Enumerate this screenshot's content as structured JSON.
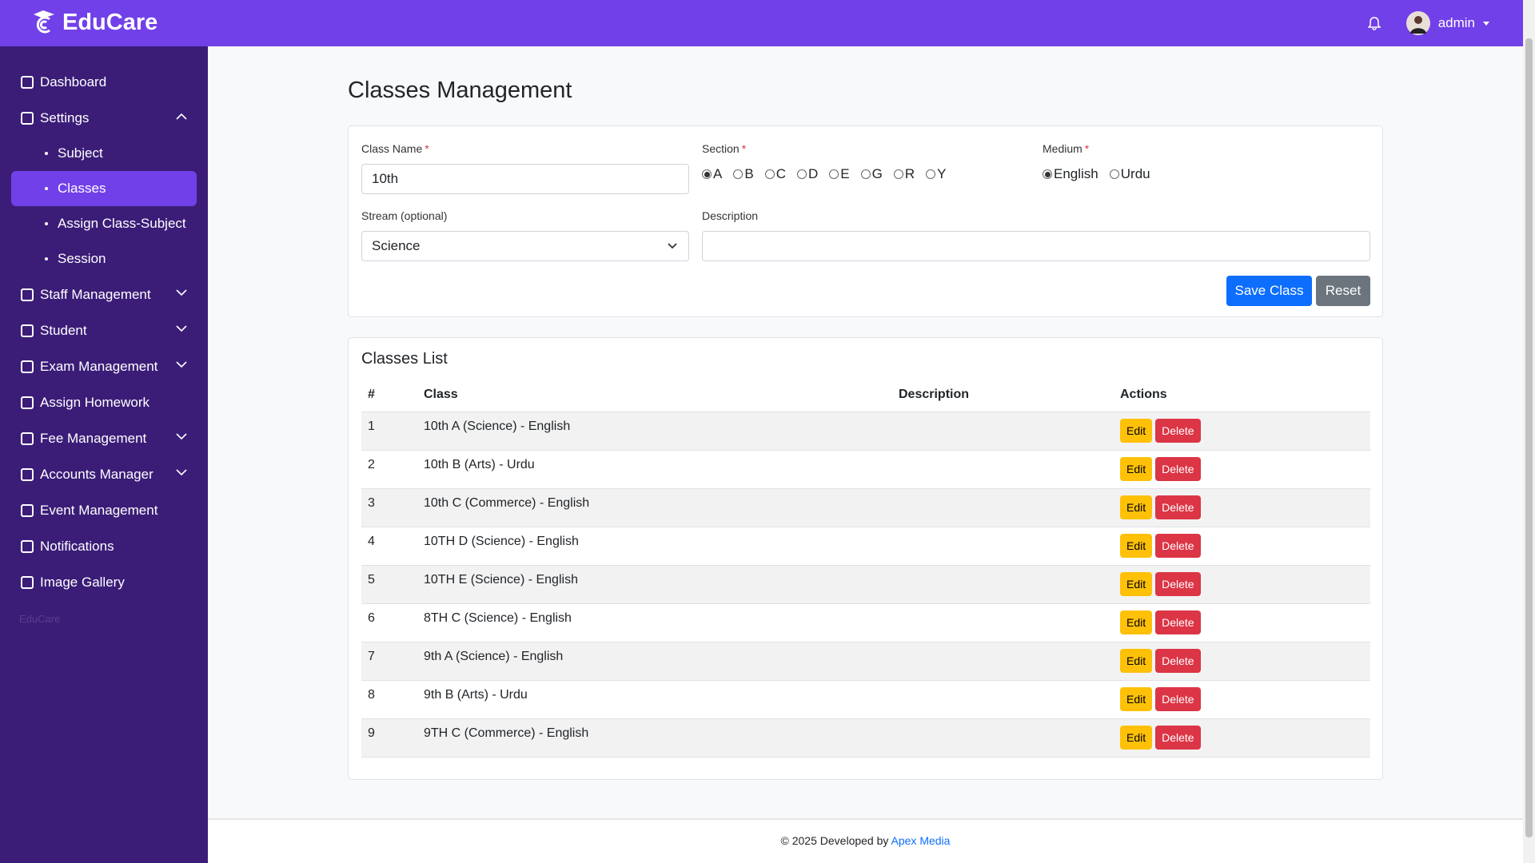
{
  "header": {
    "brand": "EduCare",
    "user": "admin"
  },
  "sidebar": {
    "items": [
      {
        "label": "Dashboard"
      },
      {
        "label": "Settings",
        "submenu": "open",
        "children": [
          {
            "label": "Subject"
          },
          {
            "label": "Classes",
            "active": true
          },
          {
            "label": "Assign Class-Subject"
          },
          {
            "label": "Session"
          }
        ]
      },
      {
        "label": "Staff Management",
        "submenu": "closed"
      },
      {
        "label": "Student",
        "submenu": "closed"
      },
      {
        "label": "Exam Management",
        "submenu": "closed"
      },
      {
        "label": "Assign Homework"
      },
      {
        "label": "Fee Management",
        "submenu": "closed"
      },
      {
        "label": "Accounts Manager",
        "submenu": "closed"
      },
      {
        "label": "Event Management"
      },
      {
        "label": "Notifications"
      },
      {
        "label": "Image Gallery"
      }
    ],
    "brand_note": "EduCare"
  },
  "page_title": "Classes Management",
  "form": {
    "class_name": {
      "label": "Class Name",
      "required": "*",
      "value": "10th"
    },
    "section": {
      "label": "Section",
      "required": "*",
      "options": [
        "A",
        "B",
        "C",
        "D",
        "E",
        "G",
        "R",
        "Y"
      ],
      "selected": 0
    },
    "medium": {
      "label": "Medium",
      "required": "*",
      "options": [
        "English",
        "Urdu"
      ],
      "selected": 0
    },
    "stream": {
      "label": "Stream (optional)",
      "value": "Science"
    },
    "description": {
      "label": "Description"
    },
    "save": "Save Class",
    "reset": "Reset"
  },
  "table": {
    "title": "Classes List",
    "columns": [
      "#",
      "Class",
      "Description",
      "Actions"
    ],
    "rows": [
      {
        "no": 1,
        "class": "10th A (Science) - English"
      },
      {
        "no": 2,
        "class": "10th B (Arts) - Urdu"
      },
      {
        "no": 3,
        "class": "10th C (Commerce) - English"
      },
      {
        "no": 4,
        "class": "10TH D (Science) - English"
      },
      {
        "no": 5,
        "class": "10TH E (Science) - English"
      },
      {
        "no": 6,
        "class": "8TH C (Science) - English"
      },
      {
        "no": 7,
        "class": "9th A (Science) - English"
      },
      {
        "no": 8,
        "class": "9th B (Arts) - Urdu"
      },
      {
        "no": 9,
        "class": "9TH C (Commerce) - English"
      }
    ],
    "actions": [
      "Edit",
      "Delete"
    ]
  },
  "footer": {
    "text": "© 2025 Developed by",
    "link": "Apex Media"
  }
}
